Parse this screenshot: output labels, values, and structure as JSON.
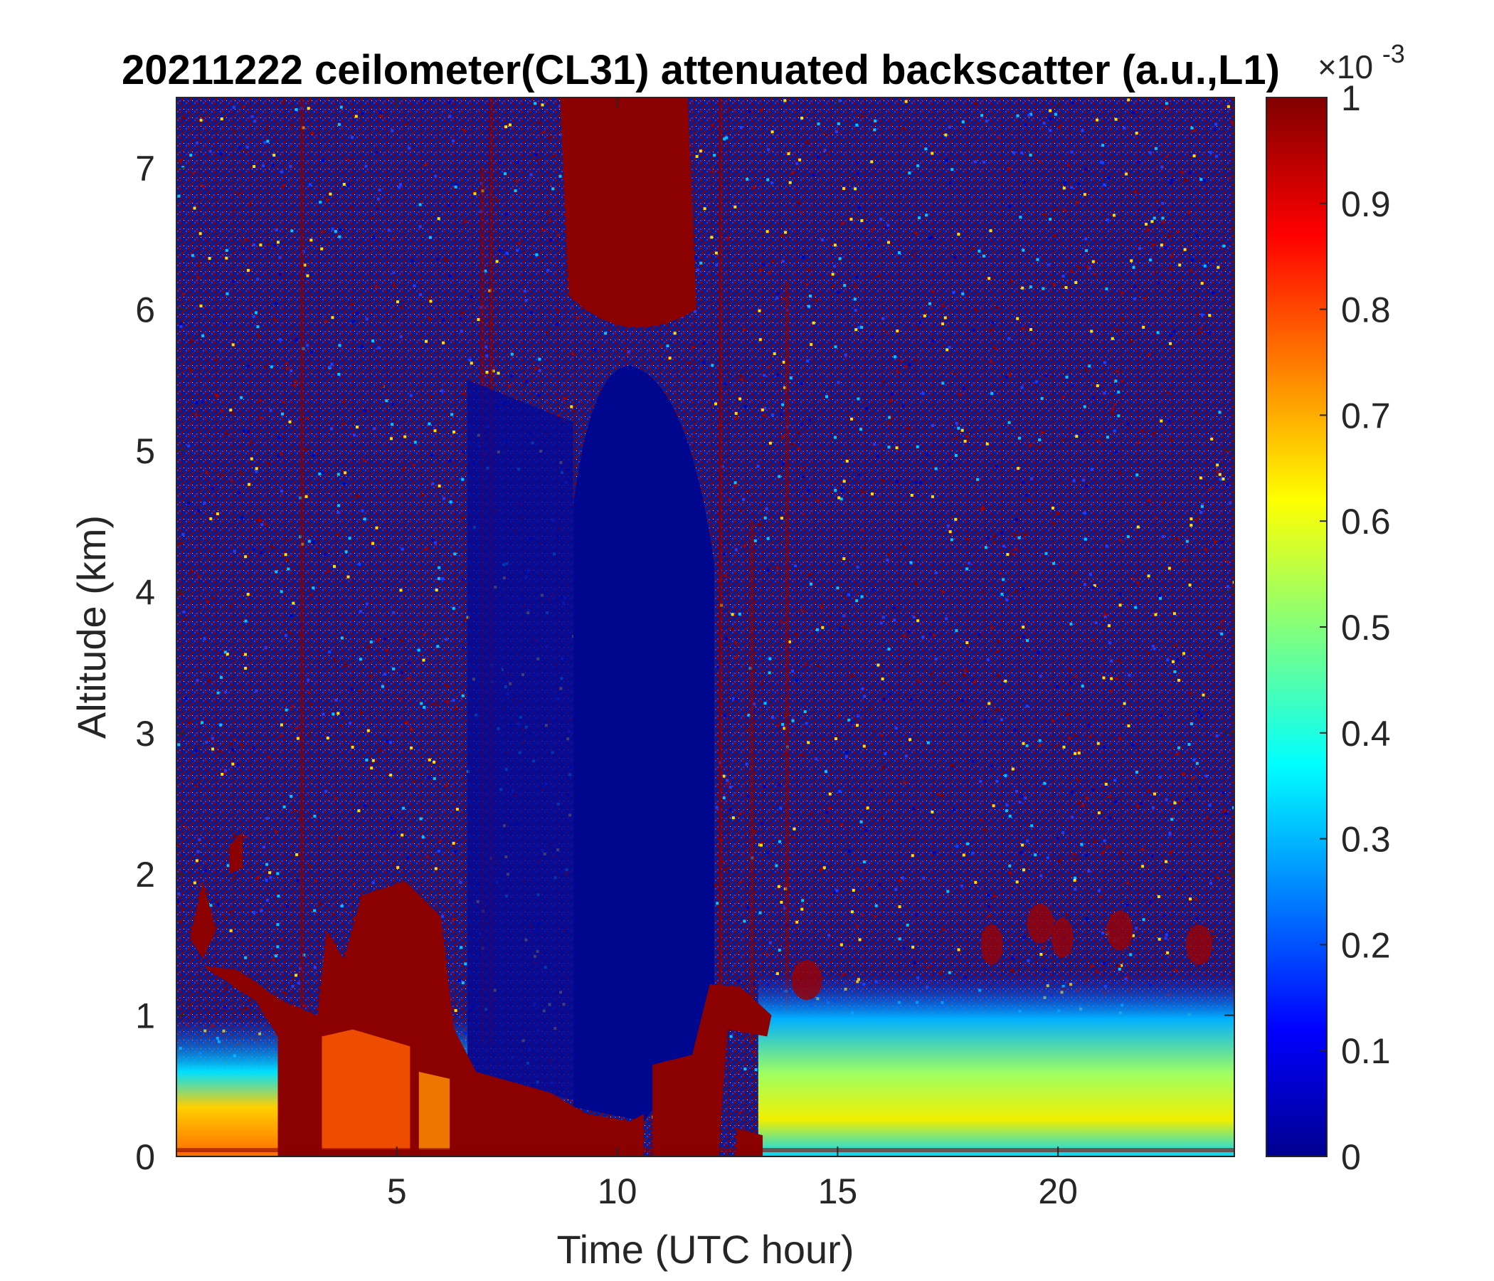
{
  "chart_data": {
    "type": "heatmap",
    "title": "20211222 ceilometer(CL31) attenuated backscatter (a.u.,L1)",
    "xlabel": "Time (UTC hour)",
    "ylabel": "Altitude (km)",
    "xlim": [
      0,
      24
    ],
    "ylim": [
      0,
      7.5
    ],
    "xticks": [
      5,
      10,
      15,
      20
    ],
    "yticks": [
      0,
      1,
      2,
      3,
      4,
      5,
      6,
      7
    ],
    "colorbar": {
      "colormap": "jet",
      "range": [
        0,
        1
      ],
      "ticks": [
        0,
        0.1,
        0.2,
        0.3,
        0.4,
        0.5,
        0.6,
        0.7,
        0.8,
        0.9,
        1
      ],
      "multiplier_base": "×10",
      "multiplier_exponent": "-3"
    },
    "features": [
      {
        "feature": "high backscatter column (saturated)",
        "time_range_h": [
          9.0,
          11.5
        ],
        "altitude_range_km": [
          6.0,
          7.5
        ]
      },
      {
        "feature": "clear low-noise region",
        "time_range_h": [
          9.0,
          12.2
        ],
        "altitude_range_km": [
          0.3,
          5.6
        ]
      },
      {
        "feature": "boundary layer aerosol (0.3-0.9)",
        "time_range_h": [
          0,
          6.5
        ],
        "altitude_range_km": [
          0,
          0.7
        ]
      },
      {
        "feature": "cloud/saturated returns",
        "time_range_h": [
          2.3,
          6.5
        ],
        "altitude_range_km": [
          0,
          1.9
        ]
      },
      {
        "feature": "boundary layer aerosol (0.4-0.7)",
        "time_range_h": [
          13.5,
          24
        ],
        "altitude_range_km": [
          0,
          0.8
        ]
      },
      {
        "feature": "low cloud",
        "time_range_h": [
          12.2,
          13.5
        ],
        "altitude_range_km": [
          0,
          1.25
        ]
      }
    ]
  }
}
